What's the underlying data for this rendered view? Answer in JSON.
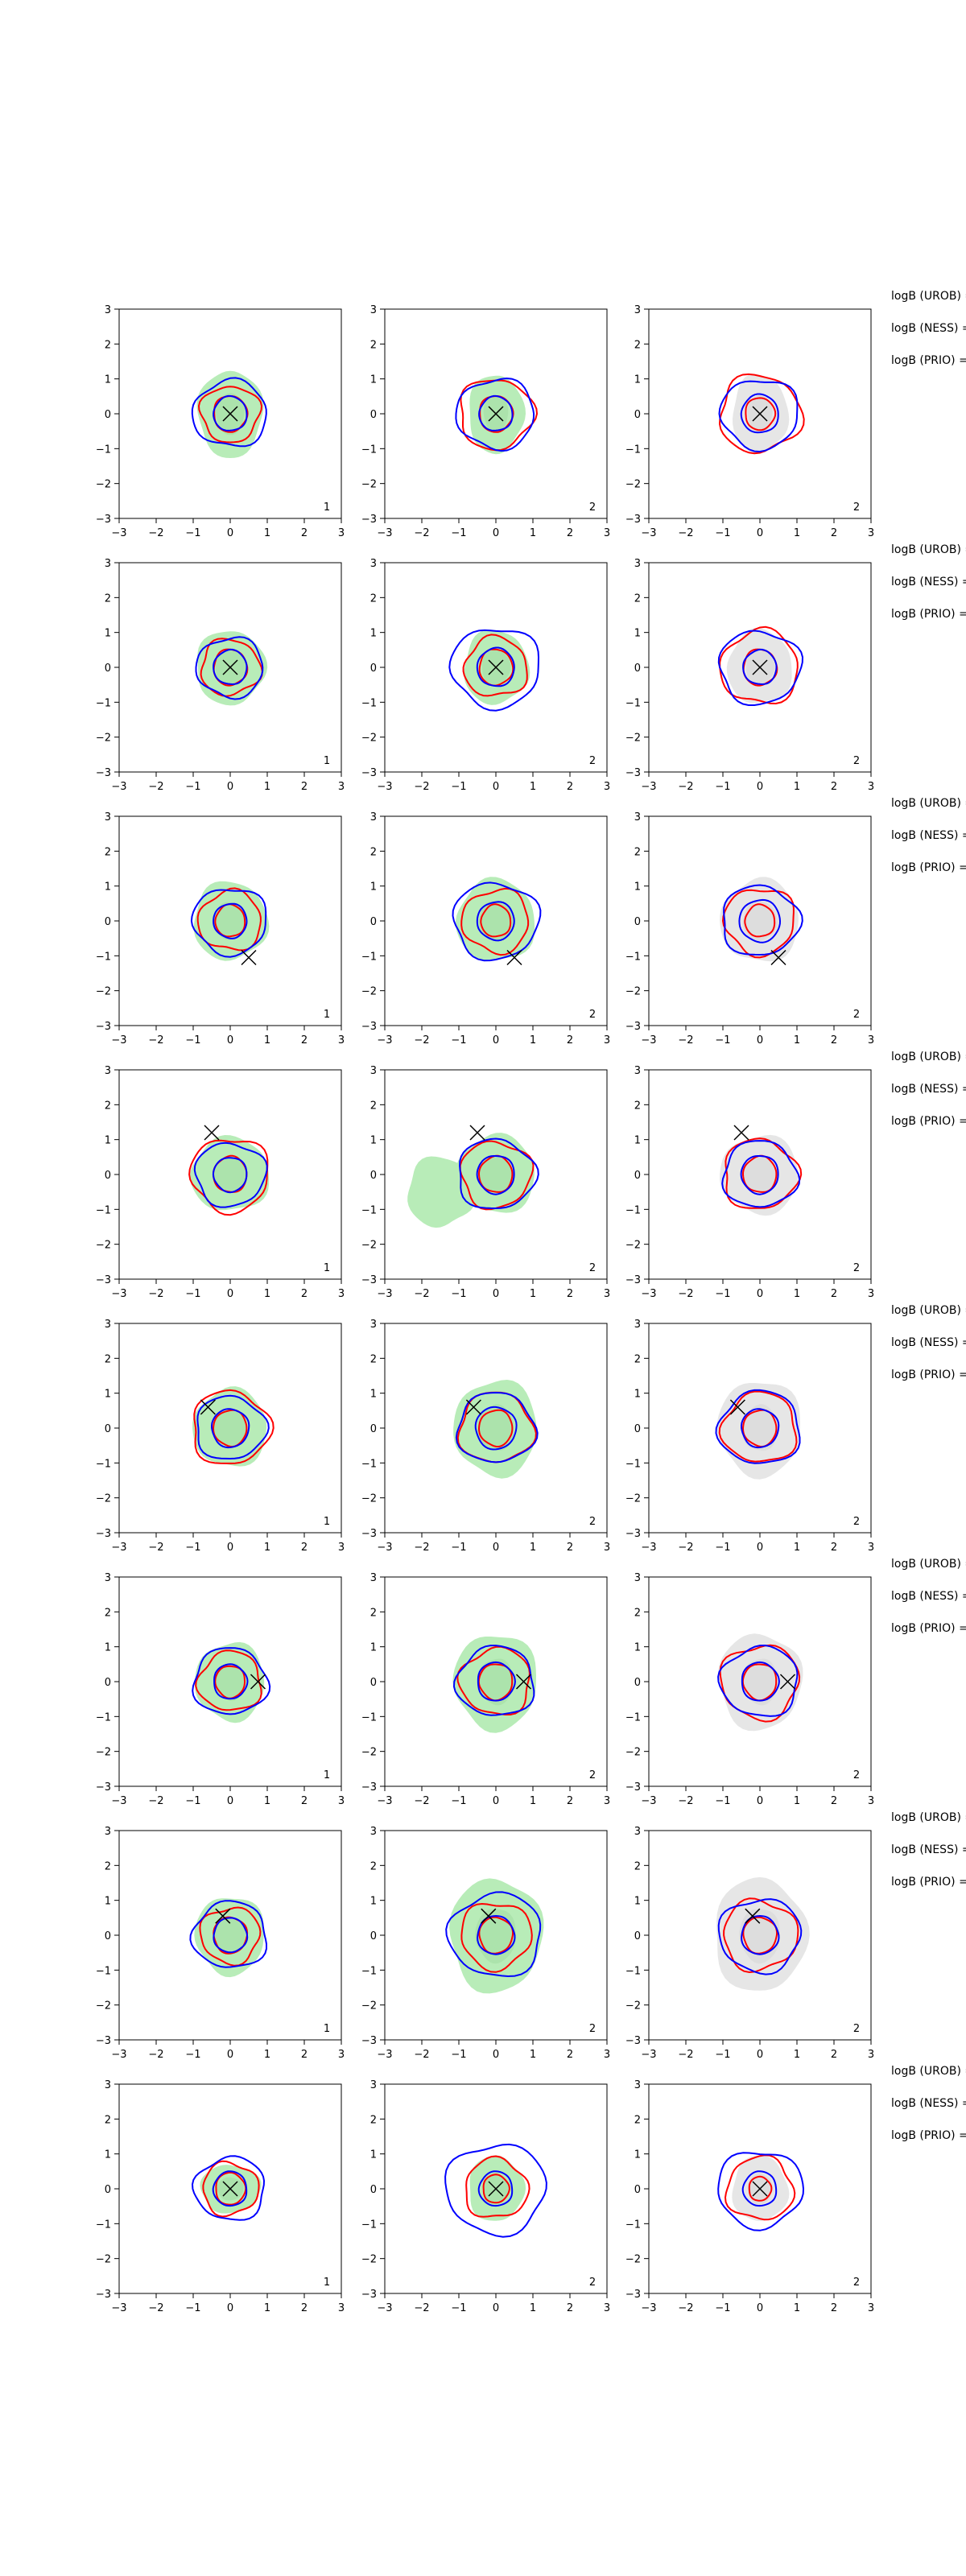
{
  "chart_data": {
    "type": "contour",
    "layout": {
      "rows": 8,
      "cols": 3
    },
    "xlim": [
      -3,
      3
    ],
    "ylim": [
      -3,
      3
    ],
    "xticks": [
      -3,
      -2,
      -1,
      0,
      1,
      2,
      3
    ],
    "yticks": [
      -3,
      -2,
      -1,
      0,
      1,
      2,
      3
    ],
    "grid": false,
    "legend": "none",
    "colors": {
      "blue": "#0000ff",
      "red": "#ff0000",
      "green": "#b8ecb8",
      "gray": "#e6e6e6",
      "marker": "#000000"
    },
    "fill_by_col": [
      "green",
      "green",
      "gray"
    ],
    "corner_labels_by_col": [
      "1",
      "2",
      "2"
    ],
    "side_text": [
      "logB (UROB) =",
      "logB (NESS) =",
      "logB (PRIO) ="
    ],
    "rows": [
      {
        "marker": [
          0.0,
          0.0
        ],
        "fill": [
          [
            0.7,
            1.0,
            0.95
          ],
          [
            0.6,
            0.9,
            1.1
          ]
        ],
        "red": [
          [
            0.45,
            0.45,
            0.4
          ],
          [
            0.8,
            1.0,
            1.1
          ]
        ],
        "blue": [
          [
            0.45,
            0.45,
            0.5
          ],
          [
            1.0,
            1.05,
            1.05
          ]
        ],
        "extra_fill": []
      },
      {
        "marker": [
          0.0,
          0.0
        ],
        "fill": [
          [
            0.75,
            0.85,
            0.95
          ],
          [
            0.7,
            0.85,
            1.0
          ]
        ],
        "red": [
          [
            0.45,
            0.45,
            0.45
          ],
          [
            0.8,
            0.85,
            1.05
          ]
        ],
        "blue": [
          [
            0.45,
            0.5,
            0.45
          ],
          [
            0.9,
            1.2,
            1.1
          ]
        ],
        "extra_fill": []
      },
      {
        "marker": [
          0.5,
          -1.05
        ],
        "fill": [
          [
            0.8,
            0.9,
            1.0
          ],
          [
            0.85,
            0.95,
            1.05
          ]
        ],
        "red": [
          [
            0.4,
            0.4,
            0.4
          ],
          [
            0.85,
            0.9,
            0.95
          ]
        ],
        "blue": [
          [
            0.45,
            0.5,
            0.55
          ],
          [
            1.0,
            1.15,
            1.05
          ]
        ],
        "extra_fill": []
      },
      {
        "marker": [
          -0.5,
          1.2
        ],
        "fill": [
          [
            0.85,
            0.85,
            0.9
          ],
          [
            0.85,
            0.9,
            1.0
          ]
        ],
        "red": [
          [
            0.45,
            0.45,
            0.45
          ],
          [
            1.05,
            0.95,
            1.0
          ]
        ],
        "blue": [
          [
            0.45,
            0.5,
            0.5
          ],
          [
            0.95,
            1.05,
            1.0
          ]
        ],
        "extra_fill": [
          [
            null,
            [
              -1.5,
              -0.5,
              0.9,
              1.0
            ],
            null
          ]
        ]
      },
      {
        "marker": [
          -0.6,
          0.6
        ],
        "fill": [
          [
            0.8,
            0.9,
            1.0
          ],
          [
            0.9,
            1.1,
            1.1
          ]
        ],
        "red": [
          [
            0.45,
            0.45,
            0.45
          ],
          [
            1.05,
            1.0,
            1.0
          ]
        ],
        "blue": [
          [
            0.5,
            0.55,
            0.5
          ],
          [
            0.95,
            1.05,
            1.1
          ]
        ],
        "extra_fill": []
      },
      {
        "marker": [
          0.75,
          0.0
        ],
        "fill": [
          [
            0.75,
            0.9,
            1.0
          ],
          [
            0.9,
            1.1,
            1.0
          ]
        ],
        "red": [
          [
            0.4,
            0.45,
            0.45
          ],
          [
            0.85,
            0.95,
            1.05
          ]
        ],
        "blue": [
          [
            0.45,
            0.5,
            0.5
          ],
          [
            1.0,
            1.05,
            1.05
          ]
        ],
        "extra_fill": []
      },
      {
        "marker": [
          -0.2,
          0.55
        ],
        "fill": [
          [
            0.75,
            0.9,
            0.95
          ],
          [
            1.0,
            1.3,
            1.05
          ]
        ],
        "red": [
          [
            0.45,
            0.45,
            0.45
          ],
          [
            0.8,
            0.95,
            1.0
          ]
        ],
        "blue": [
          [
            0.45,
            0.5,
            0.5
          ],
          [
            1.0,
            1.25,
            1.1
          ]
        ],
        "extra_fill": []
      },
      {
        "marker": [
          0.0,
          0.0
        ],
        "fill": [
          [
            0.65,
            0.55,
            0.7
          ],
          [
            0.6,
            0.75,
            0.8
          ]
        ],
        "red": [
          [
            0.4,
            0.35,
            0.3
          ],
          [
            0.75,
            0.85,
            0.9
          ]
        ],
        "blue": [
          [
            0.45,
            0.45,
            0.45
          ],
          [
            0.95,
            1.35,
            1.15
          ]
        ],
        "extra_fill": []
      }
    ]
  }
}
